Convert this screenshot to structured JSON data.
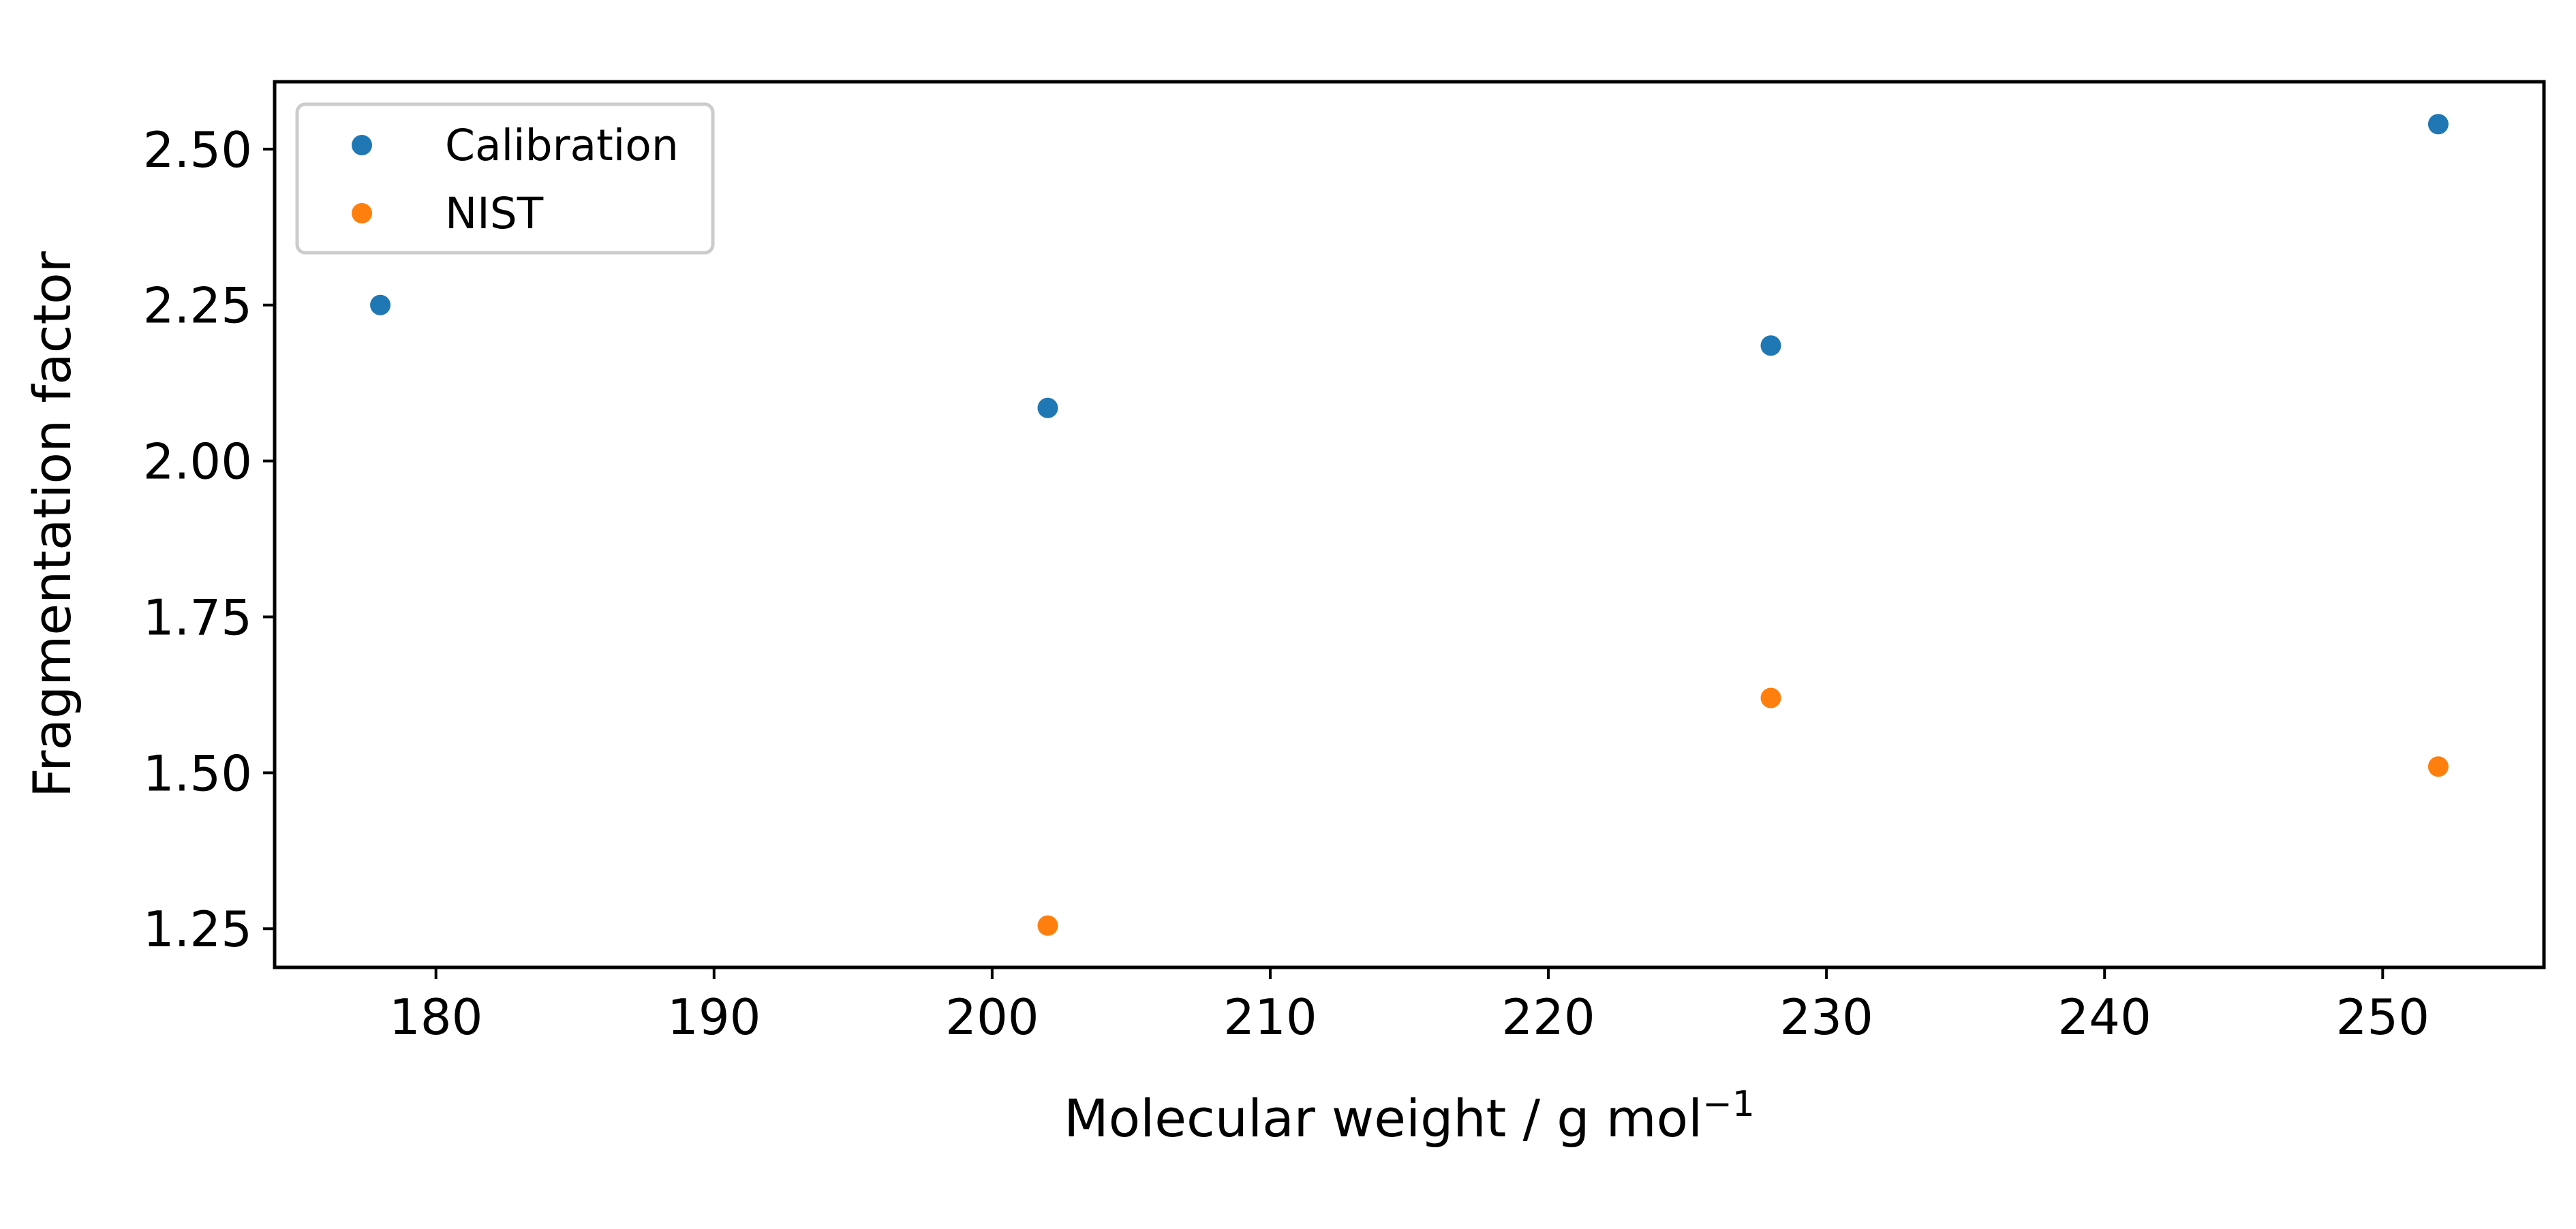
{
  "chart_data": {
    "type": "scatter",
    "title": "",
    "xlabel": "Molecular weight / g mol",
    "xlabel_superscript": "−1",
    "ylabel": "Fragmentation factor",
    "xlim": [
      174.2,
      255.8
    ],
    "ylim": [
      1.188,
      2.608
    ],
    "xticks": [
      180,
      190,
      200,
      210,
      220,
      230,
      240,
      250
    ],
    "yticks": [
      1.25,
      1.5,
      1.75,
      2.0,
      2.25,
      2.5
    ],
    "xtick_labels": [
      "180",
      "190",
      "200",
      "210",
      "220",
      "230",
      "240",
      "250"
    ],
    "ytick_labels": [
      "1.25",
      "1.50",
      "1.75",
      "2.00",
      "2.25",
      "2.50"
    ],
    "grid": false,
    "legend_position": "top-left",
    "series": [
      {
        "name": "Calibration",
        "color": "#1f77b4",
        "points": [
          {
            "x": 178,
            "y": 2.25
          },
          {
            "x": 202,
            "y": 2.085
          },
          {
            "x": 228,
            "y": 2.185
          },
          {
            "x": 252,
            "y": 2.54
          }
        ]
      },
      {
        "name": "NIST",
        "color": "#ff7f0e",
        "points": [
          {
            "x": 202,
            "y": 1.255
          },
          {
            "x": 228,
            "y": 1.62
          },
          {
            "x": 252,
            "y": 1.51
          }
        ]
      }
    ]
  }
}
